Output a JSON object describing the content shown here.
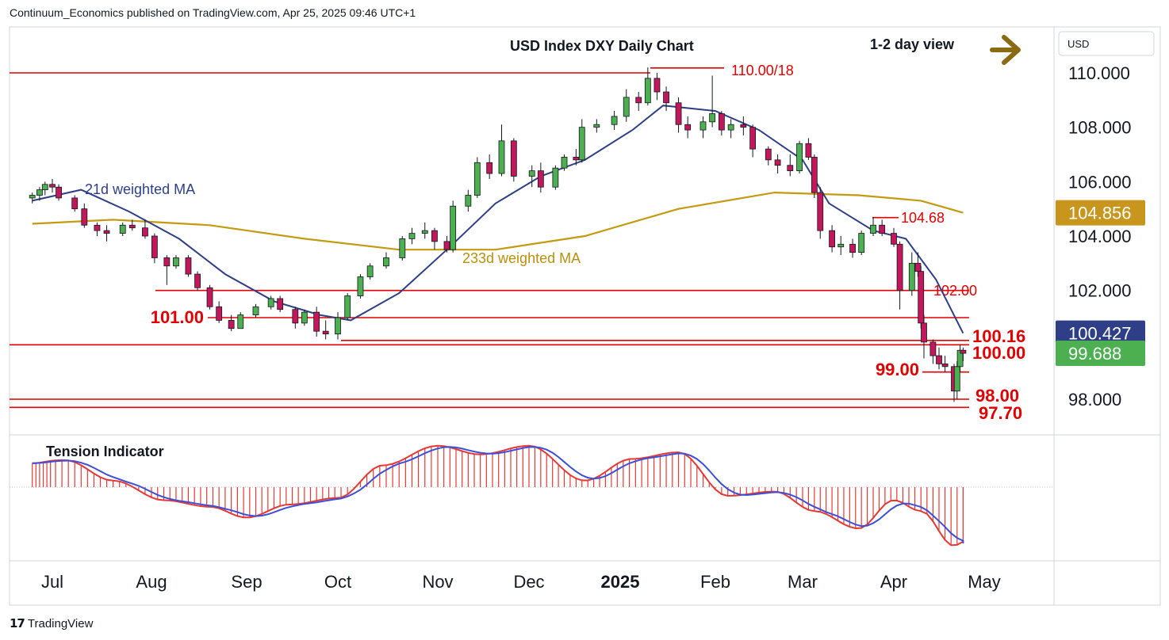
{
  "header": {
    "attribution": "Continuum_Economics published on TradingView.com, Apr 25, 2025 09:46 UTC+1"
  },
  "footer": {
    "brand": "TradingView"
  },
  "colors": {
    "up_candle": "#4caf50",
    "down_candle": "#c2185b",
    "level_line": "#e00000",
    "ma21": "#2e3f87",
    "ma233": "#c49a12",
    "tension_red": "#e53935",
    "tension_blue": "#3b4fd8",
    "price_green": "#4caf50"
  },
  "icons": {
    "view_arrow": "arrow-right-icon"
  },
  "chart_data": {
    "type": "candlestick",
    "title": "USD Index DXY Daily Chart",
    "view_label": "1-2 day view",
    "currency_label": "USD",
    "ylim": [
      97.3,
      111.3
    ],
    "y_ticks": [
      "110.000",
      "108.000",
      "106.000",
      "104.000",
      "102.000",
      "98.000"
    ],
    "x_ticks": [
      "Jul",
      "Aug",
      "Sep",
      "Oct",
      "Nov",
      "Dec",
      "2025",
      "Feb",
      "Mar",
      "Apr",
      "May"
    ],
    "price_badges": [
      {
        "label": "104.856",
        "value": 104.856,
        "style": "gold"
      },
      {
        "label": "100.427",
        "value": 100.427,
        "style": "navy"
      },
      {
        "label": "99.688",
        "value": 99.688,
        "style": "green"
      }
    ],
    "levels": [
      {
        "value": 110.18,
        "label": "110.00/18"
      },
      {
        "value": 110.0,
        "label": ""
      },
      {
        "value": 104.68,
        "label": "104.68"
      },
      {
        "value": 102.0,
        "label": "102.00"
      },
      {
        "value": 101.0,
        "label": "101.00"
      },
      {
        "value": 100.16,
        "label": "100.16"
      },
      {
        "value": 100.0,
        "label": "100.00"
      },
      {
        "value": 99.0,
        "label": "99.00"
      },
      {
        "value": 98.0,
        "label": "98.00"
      },
      {
        "value": 97.7,
        "label": "97.70"
      }
    ],
    "ma_labels": {
      "ma21": "21d weighted MA",
      "ma233": "233d weighted MA"
    },
    "ma233": [
      [
        "2024-06-20",
        104.45
      ],
      [
        "2024-07-20",
        104.6
      ],
      [
        "2024-08-20",
        104.4
      ],
      [
        "2024-09-20",
        103.9
      ],
      [
        "2024-10-20",
        103.5
      ],
      [
        "2024-11-20",
        103.5
      ],
      [
        "2024-12-20",
        104.0
      ],
      [
        "2025-01-20",
        105.0
      ],
      [
        "2025-02-20",
        105.6
      ],
      [
        "2025-03-20",
        105.5
      ],
      [
        "2025-04-10",
        105.3
      ],
      [
        "2025-04-24",
        104.856
      ]
    ],
    "ma21": [
      [
        "2024-06-20",
        105.3
      ],
      [
        "2024-07-10",
        105.7
      ],
      [
        "2024-07-25",
        104.9
      ],
      [
        "2024-08-10",
        103.9
      ],
      [
        "2024-08-25",
        102.6
      ],
      [
        "2024-09-10",
        101.6
      ],
      [
        "2024-09-25",
        101.1
      ],
      [
        "2024-10-05",
        100.9
      ],
      [
        "2024-10-20",
        101.9
      ],
      [
        "2024-11-05",
        103.6
      ],
      [
        "2024-11-20",
        105.2
      ],
      [
        "2024-12-05",
        106.2
      ],
      [
        "2024-12-20",
        106.8
      ],
      [
        "2025-01-05",
        107.9
      ],
      [
        "2025-01-15",
        108.8
      ],
      [
        "2025-02-01",
        108.6
      ],
      [
        "2025-02-15",
        107.9
      ],
      [
        "2025-03-01",
        106.8
      ],
      [
        "2025-03-10",
        105.2
      ],
      [
        "2025-03-25",
        104.2
      ],
      [
        "2025-04-05",
        103.9
      ],
      [
        "2025-04-15",
        102.4
      ],
      [
        "2025-04-24",
        100.427
      ]
    ],
    "ohlc_columns": [
      "date",
      "open",
      "high",
      "low",
      "close"
    ],
    "ohlc": [
      [
        "2024-06-20",
        105.4,
        105.6,
        105.2,
        105.5
      ],
      [
        "2024-06-24",
        105.5,
        105.8,
        105.3,
        105.7
      ],
      [
        "2024-06-27",
        105.7,
        106.0,
        105.5,
        105.9
      ],
      [
        "2024-07-01",
        105.9,
        106.1,
        105.6,
        105.8
      ],
      [
        "2024-07-03",
        105.8,
        105.9,
        105.3,
        105.4
      ],
      [
        "2024-07-08",
        105.4,
        105.5,
        104.9,
        105.0
      ],
      [
        "2024-07-11",
        105.0,
        105.2,
        104.3,
        104.4
      ],
      [
        "2024-07-15",
        104.4,
        104.5,
        104.0,
        104.2
      ],
      [
        "2024-07-18",
        104.2,
        104.4,
        103.8,
        104.1
      ],
      [
        "2024-07-23",
        104.1,
        104.5,
        104.0,
        104.4
      ],
      [
        "2024-07-26",
        104.4,
        104.6,
        104.2,
        104.3
      ],
      [
        "2024-07-30",
        104.3,
        104.6,
        103.9,
        104.0
      ],
      [
        "2024-08-02",
        104.0,
        104.1,
        103.0,
        103.2
      ],
      [
        "2024-08-06",
        103.2,
        103.3,
        102.2,
        102.9
      ],
      [
        "2024-08-09",
        102.9,
        103.3,
        102.8,
        103.2
      ],
      [
        "2024-08-13",
        103.2,
        103.3,
        102.5,
        102.6
      ],
      [
        "2024-08-16",
        102.6,
        102.7,
        102.0,
        102.1
      ],
      [
        "2024-08-20",
        102.1,
        102.2,
        101.3,
        101.4
      ],
      [
        "2024-08-23",
        101.4,
        101.6,
        100.8,
        100.9
      ],
      [
        "2024-08-27",
        100.9,
        101.1,
        100.5,
        100.6
      ],
      [
        "2024-08-30",
        100.6,
        101.2,
        100.6,
        101.1
      ],
      [
        "2024-09-04",
        101.1,
        101.5,
        101.0,
        101.4
      ],
      [
        "2024-09-09",
        101.4,
        101.8,
        101.3,
        101.7
      ],
      [
        "2024-09-12",
        101.7,
        101.8,
        101.2,
        101.3
      ],
      [
        "2024-09-17",
        101.3,
        101.4,
        100.6,
        100.8
      ],
      [
        "2024-09-20",
        100.8,
        101.3,
        100.7,
        101.2
      ],
      [
        "2024-09-24",
        101.2,
        101.4,
        100.3,
        100.5
      ],
      [
        "2024-09-27",
        100.5,
        100.9,
        100.2,
        100.4
      ],
      [
        "2024-10-01",
        100.4,
        101.2,
        100.2,
        101.0
      ],
      [
        "2024-10-04",
        101.0,
        101.9,
        100.9,
        101.8
      ],
      [
        "2024-10-08",
        101.8,
        102.6,
        101.7,
        102.5
      ],
      [
        "2024-10-11",
        102.5,
        103.0,
        102.4,
        102.9
      ],
      [
        "2024-10-16",
        102.9,
        103.4,
        102.8,
        103.2
      ],
      [
        "2024-10-21",
        103.2,
        104.0,
        103.1,
        103.9
      ],
      [
        "2024-10-24",
        103.9,
        104.3,
        103.7,
        104.1
      ],
      [
        "2024-10-28",
        104.1,
        104.5,
        103.9,
        104.2
      ],
      [
        "2024-10-31",
        104.2,
        104.3,
        103.5,
        103.8
      ],
      [
        "2024-11-04",
        103.8,
        104.0,
        103.4,
        103.5
      ],
      [
        "2024-11-06",
        103.5,
        105.3,
        103.4,
        105.1
      ],
      [
        "2024-11-11",
        105.1,
        105.7,
        104.9,
        105.5
      ],
      [
        "2024-11-14",
        105.5,
        106.9,
        105.4,
        106.7
      ],
      [
        "2024-11-18",
        106.7,
        107.0,
        106.1,
        106.3
      ],
      [
        "2024-11-22",
        106.3,
        108.1,
        106.2,
        107.5
      ],
      [
        "2024-11-26",
        107.5,
        107.6,
        106.0,
        106.2
      ],
      [
        "2024-12-02",
        106.2,
        106.6,
        105.8,
        106.4
      ],
      [
        "2024-12-05",
        106.4,
        106.7,
        105.6,
        105.8
      ],
      [
        "2024-12-10",
        105.8,
        106.6,
        105.7,
        106.5
      ],
      [
        "2024-12-13",
        106.5,
        107.0,
        106.4,
        106.9
      ],
      [
        "2024-12-17",
        106.9,
        107.2,
        106.6,
        106.8
      ],
      [
        "2024-12-19",
        106.8,
        108.3,
        106.7,
        108.0
      ],
      [
        "2024-12-24",
        108.0,
        108.3,
        107.8,
        108.1
      ],
      [
        "2024-12-30",
        108.1,
        108.6,
        107.9,
        108.4
      ],
      [
        "2025-01-03",
        108.4,
        109.4,
        108.2,
        109.1
      ],
      [
        "2025-01-07",
        109.1,
        109.3,
        108.6,
        108.9
      ],
      [
        "2025-01-10",
        108.9,
        110.2,
        108.8,
        109.8
      ],
      [
        "2025-01-13",
        109.8,
        110.0,
        109.0,
        109.3
      ],
      [
        "2025-01-16",
        109.3,
        109.5,
        108.6,
        108.9
      ],
      [
        "2025-01-20",
        108.9,
        109.1,
        107.8,
        108.1
      ],
      [
        "2025-01-23",
        108.1,
        108.4,
        107.6,
        107.9
      ],
      [
        "2025-01-28",
        107.9,
        108.4,
        107.6,
        108.2
      ],
      [
        "2025-01-31",
        108.2,
        109.9,
        108.0,
        108.5
      ],
      [
        "2025-02-03",
        108.5,
        108.6,
        107.7,
        107.9
      ],
      [
        "2025-02-06",
        107.9,
        108.3,
        107.6,
        108.1
      ],
      [
        "2025-02-10",
        108.1,
        108.4,
        107.7,
        108.0
      ],
      [
        "2025-02-13",
        108.0,
        108.1,
        106.9,
        107.2
      ],
      [
        "2025-02-18",
        107.2,
        107.3,
        106.6,
        106.8
      ],
      [
        "2025-02-21",
        106.8,
        107.0,
        106.3,
        106.6
      ],
      [
        "2025-02-25",
        106.6,
        107.0,
        106.2,
        106.4
      ],
      [
        "2025-02-28",
        106.4,
        107.5,
        106.3,
        107.4
      ],
      [
        "2025-03-03",
        107.4,
        107.6,
        106.8,
        106.9
      ],
      [
        "2025-03-05",
        106.9,
        107.0,
        105.4,
        105.6
      ],
      [
        "2025-03-07",
        105.6,
        105.8,
        103.9,
        104.2
      ],
      [
        "2025-03-11",
        104.2,
        104.4,
        103.4,
        103.6
      ],
      [
        "2025-03-14",
        103.6,
        104.0,
        103.3,
        103.7
      ],
      [
        "2025-03-18",
        103.7,
        103.9,
        103.2,
        103.4
      ],
      [
        "2025-03-21",
        103.4,
        104.2,
        103.3,
        104.1
      ],
      [
        "2025-03-25",
        104.1,
        104.7,
        104.0,
        104.4
      ],
      [
        "2025-03-28",
        104.4,
        104.6,
        104.0,
        104.1
      ],
      [
        "2025-04-01",
        104.1,
        104.3,
        103.6,
        103.7
      ],
      [
        "2025-04-03",
        103.7,
        103.8,
        101.3,
        102.0
      ],
      [
        "2025-04-07",
        102.0,
        103.4,
        101.8,
        103.0
      ],
      [
        "2025-04-09",
        103.0,
        103.4,
        102.5,
        102.7
      ],
      [
        "2025-04-10",
        102.7,
        102.9,
        100.6,
        100.8
      ],
      [
        "2025-04-11",
        100.8,
        101.1,
        99.5,
        100.1
      ],
      [
        "2025-04-14",
        100.1,
        100.2,
        99.3,
        99.6
      ],
      [
        "2025-04-16",
        99.6,
        99.9,
        99.1,
        99.3
      ],
      [
        "2025-04-18",
        99.3,
        99.6,
        99.0,
        99.2
      ],
      [
        "2025-04-21",
        99.2,
        99.3,
        97.9,
        98.3
      ],
      [
        "2025-04-22",
        98.3,
        99.4,
        98.0,
        99.2
      ],
      [
        "2025-04-23",
        99.2,
        100.0,
        99.0,
        99.8
      ],
      [
        "2025-04-24",
        99.8,
        99.9,
        99.4,
        99.688
      ]
    ],
    "tension_indicator": {
      "label": "Tension Indicator",
      "series": [
        [
          "2024-06-20",
          0.55
        ],
        [
          "2024-07-05",
          0.62
        ],
        [
          "2024-07-20",
          0.15
        ],
        [
          "2024-08-05",
          -0.3
        ],
        [
          "2024-08-20",
          -0.45
        ],
        [
          "2024-09-01",
          -0.7
        ],
        [
          "2024-09-15",
          -0.4
        ],
        [
          "2024-10-01",
          -0.25
        ],
        [
          "2024-10-15",
          0.5
        ],
        [
          "2024-11-01",
          0.95
        ],
        [
          "2024-11-15",
          0.75
        ],
        [
          "2024-12-01",
          0.95
        ],
        [
          "2024-12-20",
          0.15
        ],
        [
          "2025-01-05",
          0.65
        ],
        [
          "2025-01-20",
          0.8
        ],
        [
          "2025-02-05",
          -0.2
        ],
        [
          "2025-02-20",
          -0.1
        ],
        [
          "2025-03-05",
          -0.55
        ],
        [
          "2025-03-20",
          -0.95
        ],
        [
          "2025-04-01",
          -0.3
        ],
        [
          "2025-04-10",
          -0.55
        ],
        [
          "2025-04-21",
          -1.35
        ],
        [
          "2025-04-24",
          -1.25
        ]
      ]
    }
  }
}
